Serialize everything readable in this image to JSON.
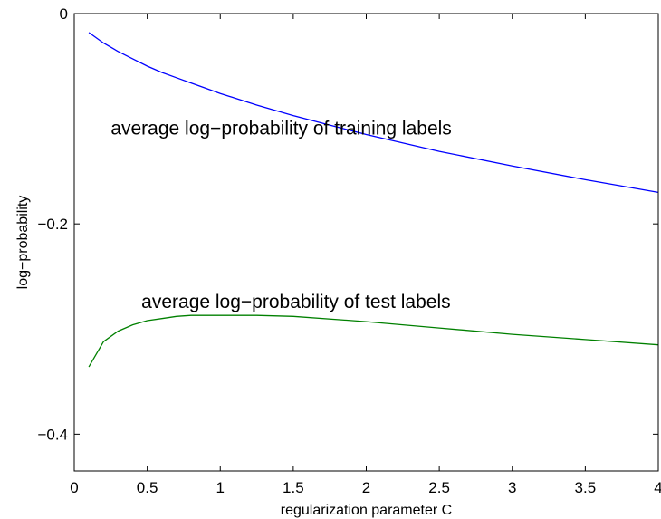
{
  "chart_data": {
    "type": "line",
    "xlabel": "regularization parameter C",
    "ylabel": "log−probability",
    "xlim": [
      0,
      4
    ],
    "ylim": [
      -0.435,
      0.0
    ],
    "x_ticks": [
      0,
      0.5,
      1,
      1.5,
      2,
      2.5,
      3,
      3.5,
      4
    ],
    "x_tick_labels": [
      "0",
      "0.5",
      "1",
      "1.5",
      "2",
      "2.5",
      "3",
      "3.5",
      "4"
    ],
    "y_ticks": [
      0,
      -0.2,
      -0.4
    ],
    "y_tick_labels": [
      "0",
      "−0.2",
      "−0.4"
    ],
    "grid": false,
    "series": [
      {
        "color": "#0000ff",
        "x": [
          0.1,
          0.2,
          0.3,
          0.4,
          0.5,
          0.6,
          0.7,
          0.8,
          0.9,
          1.0,
          1.25,
          1.5,
          1.75,
          2.0,
          2.5,
          3.0,
          3.5,
          4.0
        ],
        "values": [
          -0.018,
          -0.028,
          -0.036,
          -0.043,
          -0.05,
          -0.056,
          -0.061,
          -0.066,
          -0.071,
          -0.076,
          -0.087,
          -0.097,
          -0.106,
          -0.115,
          -0.131,
          -0.145,
          -0.158,
          -0.17
        ]
      },
      {
        "color": "#008000",
        "x": [
          0.1,
          0.2,
          0.3,
          0.4,
          0.5,
          0.6,
          0.7,
          0.8,
          0.9,
          1.0,
          1.25,
          1.5,
          2.0,
          2.5,
          3.0,
          3.5,
          4.0
        ],
        "values": [
          -0.336,
          -0.312,
          -0.302,
          -0.296,
          -0.292,
          -0.29,
          -0.288,
          -0.287,
          -0.287,
          -0.287,
          -0.287,
          -0.288,
          -0.293,
          -0.299,
          -0.305,
          -0.31,
          -0.315
        ]
      }
    ],
    "annotations": [
      {
        "text": "average log−probability of training labels",
        "x": 0.25,
        "y": -0.115
      },
      {
        "text": "average log−probability of test labels",
        "x": 0.46,
        "y": -0.28
      }
    ]
  }
}
